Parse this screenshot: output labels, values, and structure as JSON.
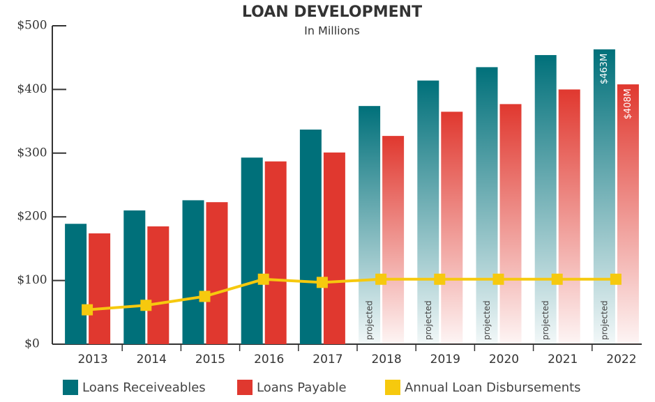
{
  "chart_data": {
    "type": "bar_line",
    "title": "LOAN DEVELOPMENT",
    "subtitle": "In Millions",
    "categories": [
      "2013",
      "2014",
      "2015",
      "2016",
      "2017",
      "2018",
      "2019",
      "2020",
      "2021",
      "2022"
    ],
    "series": [
      {
        "name": "Loans Receiveables",
        "type": "bar",
        "color": "#00707a",
        "values": [
          189,
          210,
          226,
          293,
          337,
          374,
          414,
          435,
          454,
          463
        ],
        "value_labels": [
          null,
          null,
          null,
          null,
          null,
          null,
          null,
          null,
          null,
          "$463M"
        ]
      },
      {
        "name": "Loans Payable",
        "type": "bar",
        "color": "#e0382f",
        "values": [
          174,
          185,
          223,
          287,
          301,
          327,
          365,
          377,
          400,
          408
        ],
        "value_labels": [
          null,
          null,
          null,
          null,
          null,
          null,
          null,
          null,
          null,
          "$408M"
        ]
      },
      {
        "name": "Annual Loan Disbursements",
        "type": "line",
        "color": "#f6c90e",
        "values": [
          54,
          61,
          75,
          102,
          97,
          102,
          102,
          102,
          102,
          102
        ]
      }
    ],
    "annotation": {
      "text": "projected",
      "categories": [
        "2018",
        "2019",
        "2020",
        "2021",
        "2022"
      ]
    },
    "ylim": [
      0,
      500
    ],
    "yticks": [
      {
        "value": 0,
        "label": "$0"
      },
      {
        "value": 100,
        "label": "$100"
      },
      {
        "value": 200,
        "label": "$200"
      },
      {
        "value": 300,
        "label": "$300"
      },
      {
        "value": 400,
        "label": "$400"
      },
      {
        "value": 500,
        "label": "$500"
      }
    ],
    "legend": "bottom"
  }
}
